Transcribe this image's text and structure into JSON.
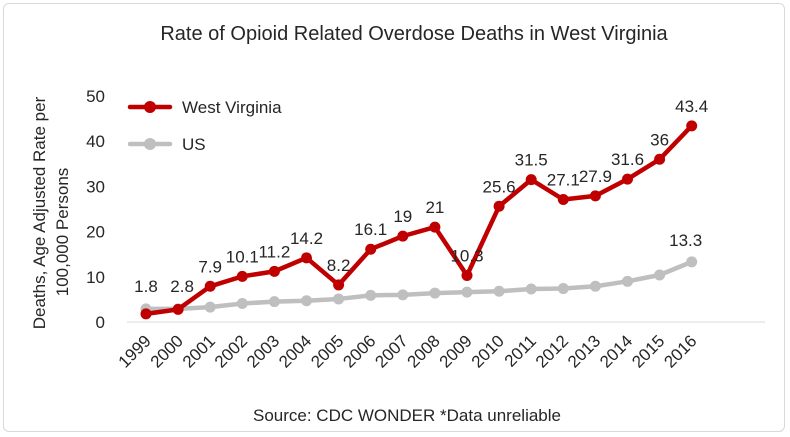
{
  "chart_data": {
    "type": "line",
    "title": "Rate of Opioid Related Overdose Deaths in West Virginia",
    "ylabel_lines": [
      "Deaths, Age Adjusted Rate per",
      "100,000 Persons"
    ],
    "xlabel": "",
    "source": "Source: CDC WONDER  *Data unreliable",
    "ylim": [
      0,
      50
    ],
    "yticks": [
      0,
      10,
      20,
      30,
      40,
      50
    ],
    "grid": false,
    "legend_position": "top-left",
    "categories": [
      "1999",
      "2000",
      "2001",
      "2002",
      "2003",
      "2004",
      "2005",
      "2006",
      "2007",
      "2008",
      "2009",
      "2010",
      "2011",
      "2012",
      "2013",
      "2014",
      "2015",
      "2016"
    ],
    "series": [
      {
        "name": "West Virginia",
        "color": "#c00000",
        "values": [
          1.8,
          2.8,
          7.9,
          10.1,
          11.2,
          14.2,
          8.2,
          16.1,
          19,
          21,
          10.3,
          25.6,
          31.5,
          27.1,
          27.9,
          31.6,
          36,
          43.4
        ],
        "labels": [
          "1.8",
          "2.8",
          "7.9",
          "10.1",
          "11.2",
          "14.2",
          "8.2",
          "16.1",
          "19",
          "21",
          "10.3",
          "25.6",
          "31.5",
          "27.1",
          "27.9",
          "31.6",
          "36",
          "43.4"
        ]
      },
      {
        "name": "US",
        "color": "#bfbfbf",
        "values": [
          2.9,
          2.9,
          3.3,
          4.1,
          4.5,
          4.7,
          5.1,
          5.9,
          6.0,
          6.4,
          6.6,
          6.8,
          7.3,
          7.4,
          7.9,
          9.0,
          10.4,
          13.3
        ],
        "labels": [
          "",
          "",
          "",
          "",
          "",
          "",
          "",
          "",
          "",
          "",
          "",
          "",
          "",
          "",
          "",
          "",
          "",
          "13.3"
        ]
      }
    ]
  }
}
